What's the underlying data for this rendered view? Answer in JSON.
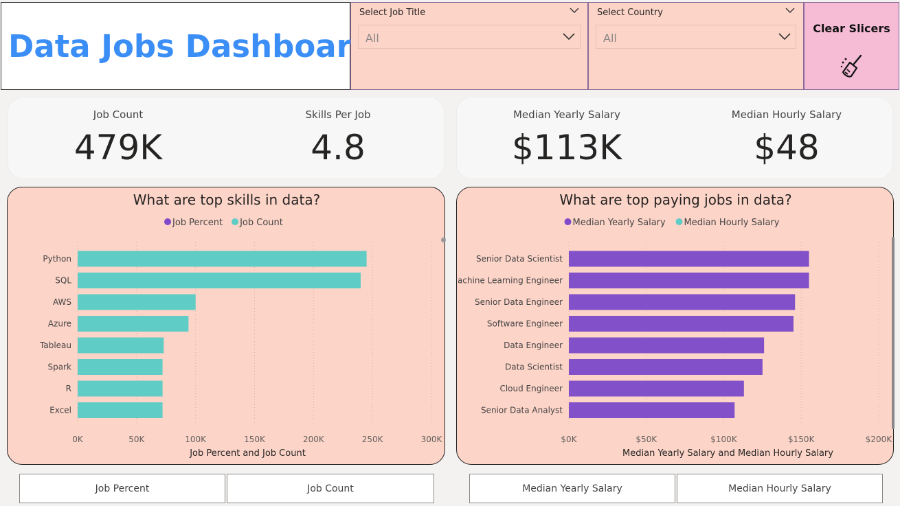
{
  "header": {
    "title": "Data Jobs Dashboard"
  },
  "slicers": {
    "job_title": {
      "label": "Select Job Title",
      "value": "All"
    },
    "country": {
      "label": "Select Country",
      "value": "All"
    },
    "clear_label": "Clear Slicers"
  },
  "kpis": {
    "job_count": {
      "label": "Job Count",
      "value": "479K"
    },
    "skills_per_job": {
      "label": "Skills Per Job",
      "value": "4.8"
    },
    "median_yearly": {
      "label": "Median Yearly Salary",
      "value": "$113K"
    },
    "median_hourly": {
      "label": "Median Hourly Salary",
      "value": "$48"
    }
  },
  "chart_data": [
    {
      "type": "bar",
      "orientation": "horizontal",
      "title": "What are top skills in data?",
      "xlabel": "Job Percent and Job Count",
      "ylabel": "",
      "legend": [
        "Job Percent",
        "Job Count"
      ],
      "legend_colors": [
        "#7f49c9",
        "#5fcdc6"
      ],
      "legend_position": "top-center",
      "categories": [
        "Python",
        "SQL",
        "AWS",
        "Azure",
        "Tableau",
        "Spark",
        "R",
        "Excel"
      ],
      "series": [
        {
          "name": "Job Count",
          "color": "#5fcdc6",
          "values": [
            245000,
            240000,
            100000,
            94000,
            73000,
            72000,
            72000,
            72000
          ]
        }
      ],
      "xlim": [
        0,
        300000
      ],
      "xticks": [
        0,
        50000,
        100000,
        150000,
        200000,
        250000,
        300000
      ],
      "xtick_labels": [
        "0K",
        "50K",
        "100K",
        "150K",
        "200K",
        "250K",
        "300K"
      ],
      "grid": true
    },
    {
      "type": "bar",
      "orientation": "horizontal",
      "title": "What are top paying jobs in data?",
      "xlabel": "Median Yearly Salary and Median Hourly Salary",
      "ylabel": "",
      "legend": [
        "Median Yearly Salary",
        "Median Hourly Salary"
      ],
      "legend_colors": [
        "#7f49c9",
        "#5fcdc6"
      ],
      "legend_position": "top-center",
      "categories": [
        "Senior Data Scientist",
        "Machine Learning Engineer",
        "Senior Data Engineer",
        "Software Engineer",
        "Data Engineer",
        "Data Scientist",
        "Cloud Engineer",
        "Senior Data Analyst"
      ],
      "series": [
        {
          "name": "Median Yearly Salary",
          "color": "#8250c8",
          "values": [
            155000,
            155000,
            146000,
            145000,
            126000,
            125000,
            113000,
            107000
          ]
        }
      ],
      "xlim": [
        0,
        200000
      ],
      "xticks": [
        0,
        50000,
        100000,
        150000,
        200000
      ],
      "xtick_labels": [
        "$0K",
        "$50K",
        "$100K",
        "$150K",
        "$200K"
      ],
      "grid": true
    }
  ],
  "tabs": {
    "left": [
      "Job Percent",
      "Job Count"
    ],
    "right": [
      "Median Yearly Salary",
      "Median Hourly Salary"
    ]
  },
  "icons": {
    "dropdown": "chevron-down-icon",
    "clear": "broom-icon"
  }
}
